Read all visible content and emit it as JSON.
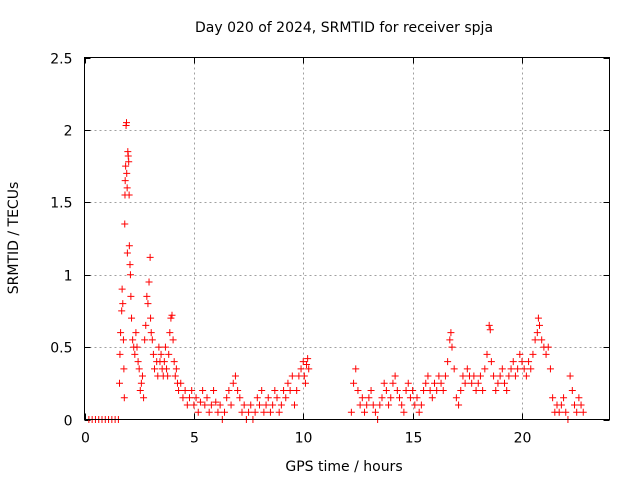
{
  "chart_data": {
    "type": "scatter",
    "title": "Day 020 of 2024, SRMTID for receiver spja",
    "xlabel": "GPS time / hours",
    "ylabel": "SRMTID / TECUs",
    "xlim": [
      0,
      24
    ],
    "ylim": [
      0,
      2.5
    ],
    "grid": true,
    "marker": "+",
    "color": "#ff0000",
    "xticks": [
      0,
      5,
      10,
      15,
      20
    ],
    "xtick_labels": [
      "0",
      "5",
      "10",
      "15",
      "20"
    ],
    "yticks": [
      0,
      0.5,
      1,
      1.5,
      2,
      2.5
    ],
    "ytick_labels": [
      "0",
      "0.5",
      "1",
      "1.5",
      "2",
      "2.5"
    ],
    "series": [
      {
        "name": "SRMTID",
        "points": [
          [
            0.2,
            0.0
          ],
          [
            0.35,
            0.0
          ],
          [
            0.5,
            0.0
          ],
          [
            0.65,
            0.0
          ],
          [
            0.8,
            0.0
          ],
          [
            0.95,
            0.0
          ],
          [
            1.1,
            0.0
          ],
          [
            1.25,
            0.0
          ],
          [
            1.4,
            0.0
          ],
          [
            1.55,
            0.0
          ],
          [
            1.6,
            0.25
          ],
          [
            1.62,
            0.45
          ],
          [
            1.65,
            0.6
          ],
          [
            1.7,
            0.75
          ],
          [
            1.72,
            0.9
          ],
          [
            1.75,
            0.8
          ],
          [
            1.78,
            0.55
          ],
          [
            1.8,
            0.35
          ],
          [
            1.82,
            0.15
          ],
          [
            1.84,
            1.35
          ],
          [
            1.85,
            1.55
          ],
          [
            1.86,
            1.65
          ],
          [
            1.88,
            1.75
          ],
          [
            1.9,
            2.03
          ],
          [
            1.92,
            2.05
          ],
          [
            1.93,
            1.7
          ],
          [
            1.95,
            1.6
          ],
          [
            1.96,
            1.15
          ],
          [
            1.98,
            1.85
          ],
          [
            2.0,
            1.82
          ],
          [
            2.02,
            1.78
          ],
          [
            2.04,
            1.55
          ],
          [
            2.05,
            1.2
          ],
          [
            2.08,
            1.07
          ],
          [
            2.1,
            1.0
          ],
          [
            2.12,
            0.85
          ],
          [
            2.15,
            0.7
          ],
          [
            2.2,
            0.55
          ],
          [
            2.25,
            0.5
          ],
          [
            2.3,
            0.45
          ],
          [
            2.35,
            0.6
          ],
          [
            2.4,
            0.5
          ],
          [
            2.45,
            0.4
          ],
          [
            2.5,
            0.35
          ],
          [
            2.55,
            0.2
          ],
          [
            2.6,
            0.25
          ],
          [
            2.65,
            0.3
          ],
          [
            2.7,
            0.15
          ],
          [
            2.75,
            0.55
          ],
          [
            2.8,
            0.65
          ],
          [
            2.85,
            0.85
          ],
          [
            2.9,
            0.8
          ],
          [
            2.95,
            0.95
          ],
          [
            3.0,
            1.12
          ],
          [
            3.02,
            0.7
          ],
          [
            3.05,
            0.6
          ],
          [
            3.1,
            0.55
          ],
          [
            3.15,
            0.45
          ],
          [
            3.2,
            0.35
          ],
          [
            3.3,
            0.4
          ],
          [
            3.35,
            0.3
          ],
          [
            3.4,
            0.5
          ],
          [
            3.45,
            0.4
          ],
          [
            3.5,
            0.45
          ],
          [
            3.55,
            0.35
          ],
          [
            3.6,
            0.3
          ],
          [
            3.65,
            0.4
          ],
          [
            3.7,
            0.5
          ],
          [
            3.75,
            0.35
          ],
          [
            3.8,
            0.3
          ],
          [
            3.85,
            0.45
          ],
          [
            3.9,
            0.6
          ],
          [
            3.95,
            0.7
          ],
          [
            4.0,
            0.72
          ],
          [
            4.05,
            0.55
          ],
          [
            4.1,
            0.4
          ],
          [
            4.15,
            0.3
          ],
          [
            4.2,
            0.35
          ],
          [
            4.25,
            0.25
          ],
          [
            4.3,
            0.2
          ],
          [
            4.4,
            0.25
          ],
          [
            4.5,
            0.15
          ],
          [
            4.6,
            0.2
          ],
          [
            4.7,
            0.1
          ],
          [
            4.8,
            0.15
          ],
          [
            4.9,
            0.2
          ],
          [
            5.0,
            0.1
          ],
          [
            5.1,
            0.15
          ],
          [
            5.2,
            0.05
          ],
          [
            5.3,
            0.12
          ],
          [
            5.4,
            0.2
          ],
          [
            5.5,
            0.1
          ],
          [
            5.6,
            0.15
          ],
          [
            5.7,
            0.05
          ],
          [
            5.8,
            0.1
          ],
          [
            5.9,
            0.2
          ],
          [
            6.0,
            0.12
          ],
          [
            6.1,
            0.05
          ],
          [
            6.2,
            0.1
          ],
          [
            6.3,
            0.0
          ],
          [
            6.4,
            0.05
          ],
          [
            6.5,
            0.15
          ],
          [
            6.6,
            0.2
          ],
          [
            6.7,
            0.1
          ],
          [
            6.8,
            0.25
          ],
          [
            6.9,
            0.3
          ],
          [
            7.0,
            0.2
          ],
          [
            7.1,
            0.15
          ],
          [
            7.2,
            0.05
          ],
          [
            7.3,
            0.1
          ],
          [
            7.4,
            0.0
          ],
          [
            7.5,
            0.05
          ],
          [
            7.6,
            0.1
          ],
          [
            7.7,
            0.0
          ],
          [
            7.8,
            0.05
          ],
          [
            7.9,
            0.15
          ],
          [
            8.0,
            0.1
          ],
          [
            8.1,
            0.2
          ],
          [
            8.2,
            0.05
          ],
          [
            8.3,
            0.1
          ],
          [
            8.4,
            0.15
          ],
          [
            8.5,
            0.05
          ],
          [
            8.6,
            0.1
          ],
          [
            8.7,
            0.2
          ],
          [
            8.8,
            0.15
          ],
          [
            8.9,
            0.05
          ],
          [
            9.0,
            0.1
          ],
          [
            9.1,
            0.2
          ],
          [
            9.2,
            0.15
          ],
          [
            9.3,
            0.25
          ],
          [
            9.4,
            0.2
          ],
          [
            9.5,
            0.3
          ],
          [
            9.6,
            0.1
          ],
          [
            9.7,
            0.2
          ],
          [
            9.8,
            0.3
          ],
          [
            9.9,
            0.35
          ],
          [
            10.0,
            0.4
          ],
          [
            10.05,
            0.3
          ],
          [
            10.1,
            0.25
          ],
          [
            10.15,
            0.38
          ],
          [
            10.2,
            0.42
          ],
          [
            10.25,
            0.35
          ],
          [
            12.2,
            0.05
          ],
          [
            12.3,
            0.25
          ],
          [
            12.4,
            0.35
          ],
          [
            12.5,
            0.2
          ],
          [
            12.6,
            0.1
          ],
          [
            12.7,
            0.15
          ],
          [
            12.8,
            0.05
          ],
          [
            12.9,
            0.1
          ],
          [
            13.0,
            0.15
          ],
          [
            13.1,
            0.2
          ],
          [
            13.2,
            0.1
          ],
          [
            13.3,
            0.05
          ],
          [
            13.4,
            0.0
          ],
          [
            13.5,
            0.1
          ],
          [
            13.6,
            0.15
          ],
          [
            13.7,
            0.25
          ],
          [
            13.8,
            0.2
          ],
          [
            13.9,
            0.1
          ],
          [
            14.0,
            0.15
          ],
          [
            14.1,
            0.25
          ],
          [
            14.2,
            0.3
          ],
          [
            14.3,
            0.2
          ],
          [
            14.4,
            0.15
          ],
          [
            14.5,
            0.1
          ],
          [
            14.6,
            0.05
          ],
          [
            14.7,
            0.2
          ],
          [
            14.8,
            0.25
          ],
          [
            14.9,
            0.15
          ],
          [
            15.0,
            0.2
          ],
          [
            15.1,
            0.1
          ],
          [
            15.2,
            0.15
          ],
          [
            15.3,
            0.05
          ],
          [
            15.4,
            0.1
          ],
          [
            15.5,
            0.2
          ],
          [
            15.6,
            0.25
          ],
          [
            15.7,
            0.3
          ],
          [
            15.8,
            0.2
          ],
          [
            15.9,
            0.15
          ],
          [
            16.0,
            0.25
          ],
          [
            16.1,
            0.2
          ],
          [
            16.2,
            0.3
          ],
          [
            16.3,
            0.25
          ],
          [
            16.4,
            0.2
          ],
          [
            16.5,
            0.3
          ],
          [
            16.6,
            0.4
          ],
          [
            16.7,
            0.55
          ],
          [
            16.75,
            0.6
          ],
          [
            16.8,
            0.5
          ],
          [
            16.9,
            0.35
          ],
          [
            17.0,
            0.15
          ],
          [
            17.1,
            0.1
          ],
          [
            17.2,
            0.2
          ],
          [
            17.3,
            0.3
          ],
          [
            17.4,
            0.25
          ],
          [
            17.5,
            0.35
          ],
          [
            17.6,
            0.3
          ],
          [
            17.7,
            0.25
          ],
          [
            17.8,
            0.3
          ],
          [
            17.9,
            0.2
          ],
          [
            18.0,
            0.25
          ],
          [
            18.1,
            0.3
          ],
          [
            18.2,
            0.2
          ],
          [
            18.3,
            0.35
          ],
          [
            18.4,
            0.45
          ],
          [
            18.5,
            0.65
          ],
          [
            18.55,
            0.62
          ],
          [
            18.6,
            0.4
          ],
          [
            18.7,
            0.3
          ],
          [
            18.8,
            0.2
          ],
          [
            18.9,
            0.25
          ],
          [
            19.0,
            0.3
          ],
          [
            19.1,
            0.35
          ],
          [
            19.2,
            0.25
          ],
          [
            19.3,
            0.2
          ],
          [
            19.4,
            0.3
          ],
          [
            19.5,
            0.35
          ],
          [
            19.6,
            0.4
          ],
          [
            19.7,
            0.3
          ],
          [
            19.8,
            0.35
          ],
          [
            19.9,
            0.45
          ],
          [
            20.0,
            0.4
          ],
          [
            20.1,
            0.35
          ],
          [
            20.2,
            0.3
          ],
          [
            20.3,
            0.4
          ],
          [
            20.4,
            0.35
          ],
          [
            20.5,
            0.45
          ],
          [
            20.6,
            0.55
          ],
          [
            20.7,
            0.6
          ],
          [
            20.75,
            0.7
          ],
          [
            20.8,
            0.65
          ],
          [
            20.9,
            0.55
          ],
          [
            21.0,
            0.5
          ],
          [
            21.1,
            0.45
          ],
          [
            21.2,
            0.5
          ],
          [
            21.3,
            0.35
          ],
          [
            21.4,
            0.15
          ],
          [
            21.5,
            0.05
          ],
          [
            21.6,
            0.1
          ],
          [
            21.7,
            0.05
          ],
          [
            21.8,
            0.1
          ],
          [
            21.9,
            0.15
          ],
          [
            22.0,
            0.05
          ],
          [
            22.1,
            0.0
          ],
          [
            22.2,
            0.3
          ],
          [
            22.3,
            0.2
          ],
          [
            22.4,
            0.1
          ],
          [
            22.5,
            0.05
          ],
          [
            22.6,
            0.15
          ],
          [
            22.7,
            0.1
          ],
          [
            22.8,
            0.05
          ]
        ]
      }
    ]
  }
}
